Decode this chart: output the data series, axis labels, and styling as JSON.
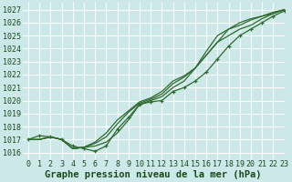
{
  "bg_color": "#cce8e8",
  "grid_color": "#ffffff",
  "line_color": "#2d6a2d",
  "marker_color": "#2d6a2d",
  "xlabel": "Graphe pression niveau de la mer (hPa)",
  "xlim": [
    -0.5,
    23
  ],
  "ylim": [
    1015.5,
    1027.5
  ],
  "yticks": [
    1016,
    1017,
    1018,
    1019,
    1020,
    1021,
    1022,
    1023,
    1024,
    1025,
    1026,
    1027
  ],
  "xticks": [
    0,
    1,
    2,
    3,
    4,
    5,
    6,
    7,
    8,
    9,
    10,
    11,
    12,
    13,
    14,
    15,
    16,
    17,
    18,
    19,
    20,
    21,
    22,
    23
  ],
  "series": [
    {
      "x": [
        0,
        1,
        2,
        3,
        4,
        5,
        6,
        7,
        8,
        9,
        10,
        11,
        12,
        13,
        14,
        15,
        16,
        17,
        18,
        19,
        20,
        21,
        22,
        23
      ],
      "y": [
        1017.0,
        1017.0,
        1017.2,
        1017.0,
        1016.3,
        1016.4,
        1016.5,
        1016.8,
        1017.5,
        1018.5,
        1019.7,
        1020.0,
        1020.3,
        1021.0,
        1021.5,
        1022.5,
        1023.8,
        1025.0,
        1025.5,
        1026.0,
        1026.3,
        1026.5,
        1026.7,
        1027.0
      ],
      "marker": false,
      "lw": 0.9
    },
    {
      "x": [
        0,
        1,
        2,
        3,
        4,
        5,
        6,
        7,
        8,
        9,
        10,
        11,
        12,
        13,
        14,
        15,
        16,
        17,
        18,
        19,
        20,
        21,
        22,
        23
      ],
      "y": [
        1017.0,
        1017.0,
        1017.2,
        1017.0,
        1016.3,
        1016.4,
        1016.7,
        1017.2,
        1018.2,
        1019.1,
        1019.8,
        1020.1,
        1020.5,
        1021.3,
        1021.8,
        1022.5,
        1023.5,
        1024.5,
        1025.5,
        1025.8,
        1026.2,
        1026.5,
        1026.8,
        1027.0
      ],
      "marker": false,
      "lw": 0.9
    },
    {
      "x": [
        0,
        1,
        2,
        3,
        4,
        5,
        6,
        7,
        8,
        9,
        10,
        11,
        12,
        13,
        14,
        15,
        16,
        17,
        18,
        19,
        20,
        21,
        22,
        23
      ],
      "y": [
        1017.0,
        1017.0,
        1017.2,
        1017.0,
        1016.3,
        1016.4,
        1016.8,
        1017.5,
        1018.5,
        1019.2,
        1019.9,
        1020.2,
        1020.7,
        1021.5,
        1021.9,
        1022.5,
        1023.5,
        1024.5,
        1025.0,
        1025.5,
        1025.8,
        1026.3,
        1026.7,
        1027.0
      ],
      "marker": false,
      "lw": 0.9
    },
    {
      "x": [
        0,
        1,
        2,
        3,
        4,
        5,
        6,
        7,
        8,
        9,
        10,
        11,
        12,
        13,
        14,
        15,
        16,
        17,
        18,
        19,
        20,
        21,
        22,
        23
      ],
      "y": [
        1017.0,
        1017.3,
        1017.2,
        1017.0,
        1016.5,
        1016.3,
        1016.1,
        1016.5,
        1017.8,
        1018.7,
        1019.7,
        1019.9,
        1020.0,
        1020.7,
        1021.0,
        1021.5,
        1022.2,
        1023.2,
        1024.2,
        1025.0,
        1025.5,
        1026.0,
        1026.5,
        1026.9
      ],
      "marker": true,
      "lw": 0.9
    }
  ],
  "font_color": "#1a4a1a",
  "xlabel_fontsize": 7.5,
  "tick_fontsize": 6.0
}
